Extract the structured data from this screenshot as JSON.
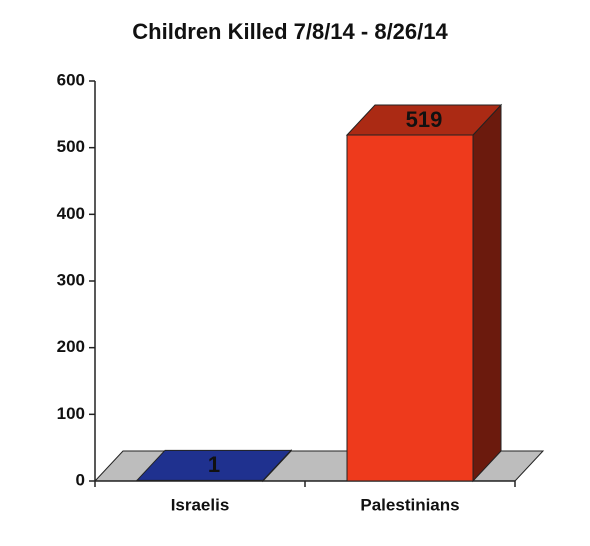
{
  "chart_data": {
    "type": "bar3d",
    "title": "Children Killed 7/8/14 - 8/26/14",
    "categories": [
      "Israelis",
      "Palestinians"
    ],
    "values": [
      1,
      519
    ],
    "colors": [
      "#2b44c6",
      "#ee3a1c"
    ],
    "ylim": [
      0,
      600
    ],
    "yticks": [
      0,
      100,
      200,
      300,
      400,
      500,
      600
    ],
    "grid": false
  }
}
